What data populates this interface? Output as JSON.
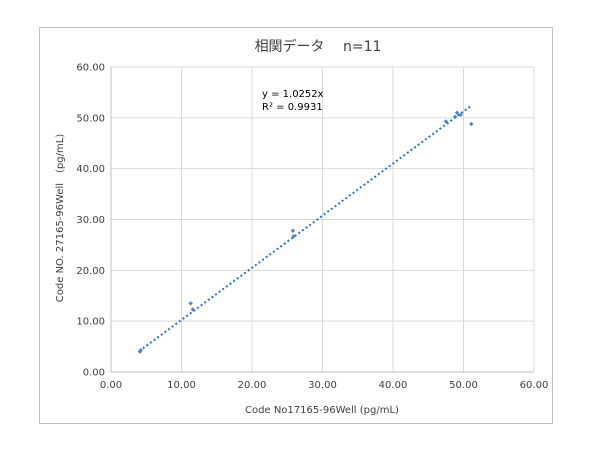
{
  "chart_data": {
    "type": "scatter",
    "title": "相関データ　 n=11",
    "xlabel": "Code No17165-96Well (pg/mL)",
    "ylabel": "Code NO. 27165-96Well　(pg/mL)",
    "xlim": [
      0,
      60
    ],
    "ylim": [
      0,
      60
    ],
    "xticks": [
      "0.00",
      "10.00",
      "20.00",
      "30.00",
      "40.00",
      "50.00",
      "60.00"
    ],
    "yticks": [
      "0.00",
      "10.00",
      "20.00",
      "30.00",
      "40.00",
      "50.00",
      "60.00"
    ],
    "grid": true,
    "legend": "none",
    "marker_color": "#4a86c5",
    "trendline": {
      "type": "linear",
      "slope": 1.0252,
      "intercept": 0,
      "x_range": [
        4,
        51
      ],
      "color": "#2e75b6",
      "equation": "y = 1.0252x",
      "r2": "R² = 0.9931"
    },
    "points": [
      {
        "x": 4.1,
        "y": 4.0
      },
      {
        "x": 4.2,
        "y": 4.3
      },
      {
        "x": 11.3,
        "y": 13.5
      },
      {
        "x": 11.6,
        "y": 12.3
      },
      {
        "x": 25.8,
        "y": 27.8
      },
      {
        "x": 25.9,
        "y": 26.7
      },
      {
        "x": 47.5,
        "y": 49.3
      },
      {
        "x": 48.8,
        "y": 50.2
      },
      {
        "x": 49.1,
        "y": 51.0
      },
      {
        "x": 49.6,
        "y": 50.6
      },
      {
        "x": 51.1,
        "y": 48.8
      }
    ]
  }
}
